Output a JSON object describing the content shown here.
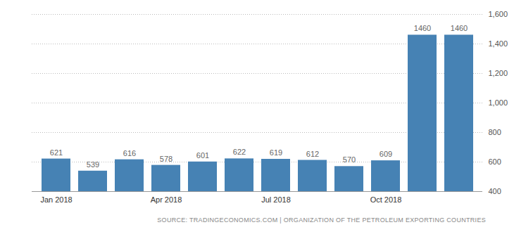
{
  "chart_data": {
    "type": "bar",
    "categories": [
      "Jan 2018",
      null,
      null,
      "Apr 2018",
      null,
      null,
      "Jul 2018",
      null,
      null,
      "Oct 2018",
      null,
      null
    ],
    "values": [
      621,
      539,
      616,
      578,
      601,
      622,
      619,
      612,
      570,
      609,
      1460,
      1460
    ],
    "color": "#4682b4",
    "ylim": [
      400,
      1600
    ],
    "yticks": [
      400,
      600,
      800,
      1000,
      1200,
      1400,
      1600
    ],
    "grid": true,
    "data_labels": true,
    "caption": "SOURCE: TRADINGECONOMICS.COM | ORGANIZATION OF THE PETROLEUM EXPORTING COUNTRIES"
  }
}
